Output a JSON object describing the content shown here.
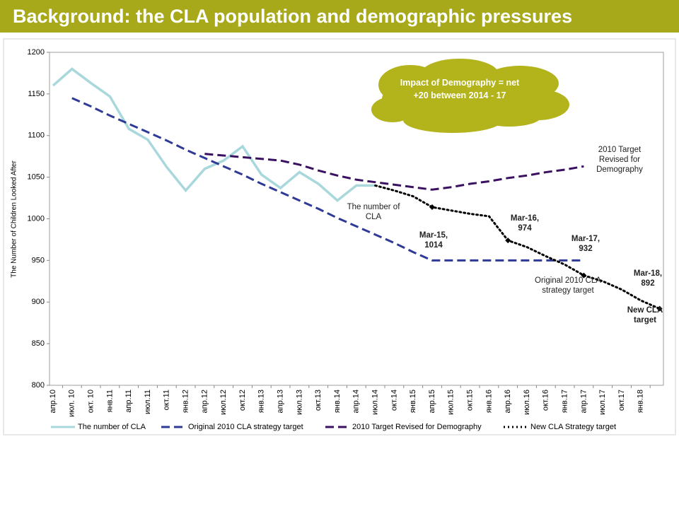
{
  "chart_data": {
    "type": "line",
    "title": "Background: the CLA population and demographic pressures",
    "y_label": "The Number of Children Looked After",
    "categories": [
      "апр.10",
      "июл. 10",
      "окт. 10",
      "янв.11",
      "апр.11",
      "июл.11",
      "окт.11",
      "янв.12",
      "апр.12",
      "июл.12",
      "окт.12",
      "янв.13",
      "апр.13",
      "июл.13",
      "окт.13",
      "янв.14",
      "апр.14",
      "июл.14",
      "окт.14",
      "янв.15",
      "апр.15",
      "июл.15",
      "окт.15",
      "янв.16",
      "апр.16",
      "июл.16",
      "окт.16",
      "янв.17",
      "апр.17",
      "июл.17",
      "окт.17",
      "янв.18",
      null
    ],
    "ylim": [
      800,
      1200
    ],
    "yticks": [
      800,
      850,
      900,
      950,
      1000,
      1050,
      1100,
      1150,
      1200
    ],
    "legend": "bottom",
    "series": [
      {
        "name": "The number of CLA",
        "color": "#a9d8dc",
        "dash": "solid",
        "values": [
          1160,
          1180,
          1163,
          1147,
          1108,
          1095,
          1062,
          1034,
          1060,
          1070,
          1087,
          1053,
          1037,
          1056,
          1042,
          1022,
          1040,
          1040,
          null,
          null,
          null,
          null,
          null,
          null,
          null,
          null,
          null,
          null,
          null,
          null,
          null,
          null,
          null
        ]
      },
      {
        "name": "Original 2010  CLA strategy target",
        "color": "#2f3a96",
        "dash": "dashed",
        "values": [
          null,
          1145,
          1135,
          1124,
          1114,
          1104,
          1094,
          1083,
          1073,
          1063,
          1053,
          1042,
          1032,
          1022,
          1012,
          1001,
          991,
          981,
          971,
          960,
          950,
          950,
          950,
          950,
          950,
          950,
          950,
          950,
          950,
          null,
          null,
          null,
          null
        ]
      },
      {
        "name": "2010 Target Revised for Demography",
        "color": "#3a1060",
        "dash": "dashed",
        "values": [
          null,
          null,
          null,
          null,
          null,
          null,
          null,
          null,
          1078,
          1076,
          1074,
          1072,
          1070,
          1065,
          1058,
          1052,
          1047,
          1044,
          1041,
          1038,
          1035,
          1038,
          1042,
          1045,
          1049,
          1052,
          1056,
          1059,
          1063,
          null,
          null,
          null,
          null
        ]
      },
      {
        "name": "New CLA Strategy target",
        "color": "#000000",
        "dash": "dotted",
        "values": [
          null,
          null,
          null,
          null,
          null,
          null,
          null,
          null,
          null,
          null,
          null,
          null,
          null,
          null,
          null,
          null,
          null,
          1040,
          1034,
          1027,
          1014,
          1010,
          1006,
          1003,
          974,
          966,
          955,
          945,
          932,
          925,
          915,
          902,
          892
        ]
      }
    ],
    "annotations": [
      "The number of CLA",
      "Original  2010 CLA strategy target",
      "2010 Target Revised for Demography",
      "New CLA target"
    ],
    "point_labels": [
      "Mar-15, 1014",
      "Mar-16, 974",
      "Mar-17, 932",
      "Mar-18, 892"
    ],
    "callout": "Impact of Demography = net +20 between 2014 - 17"
  }
}
